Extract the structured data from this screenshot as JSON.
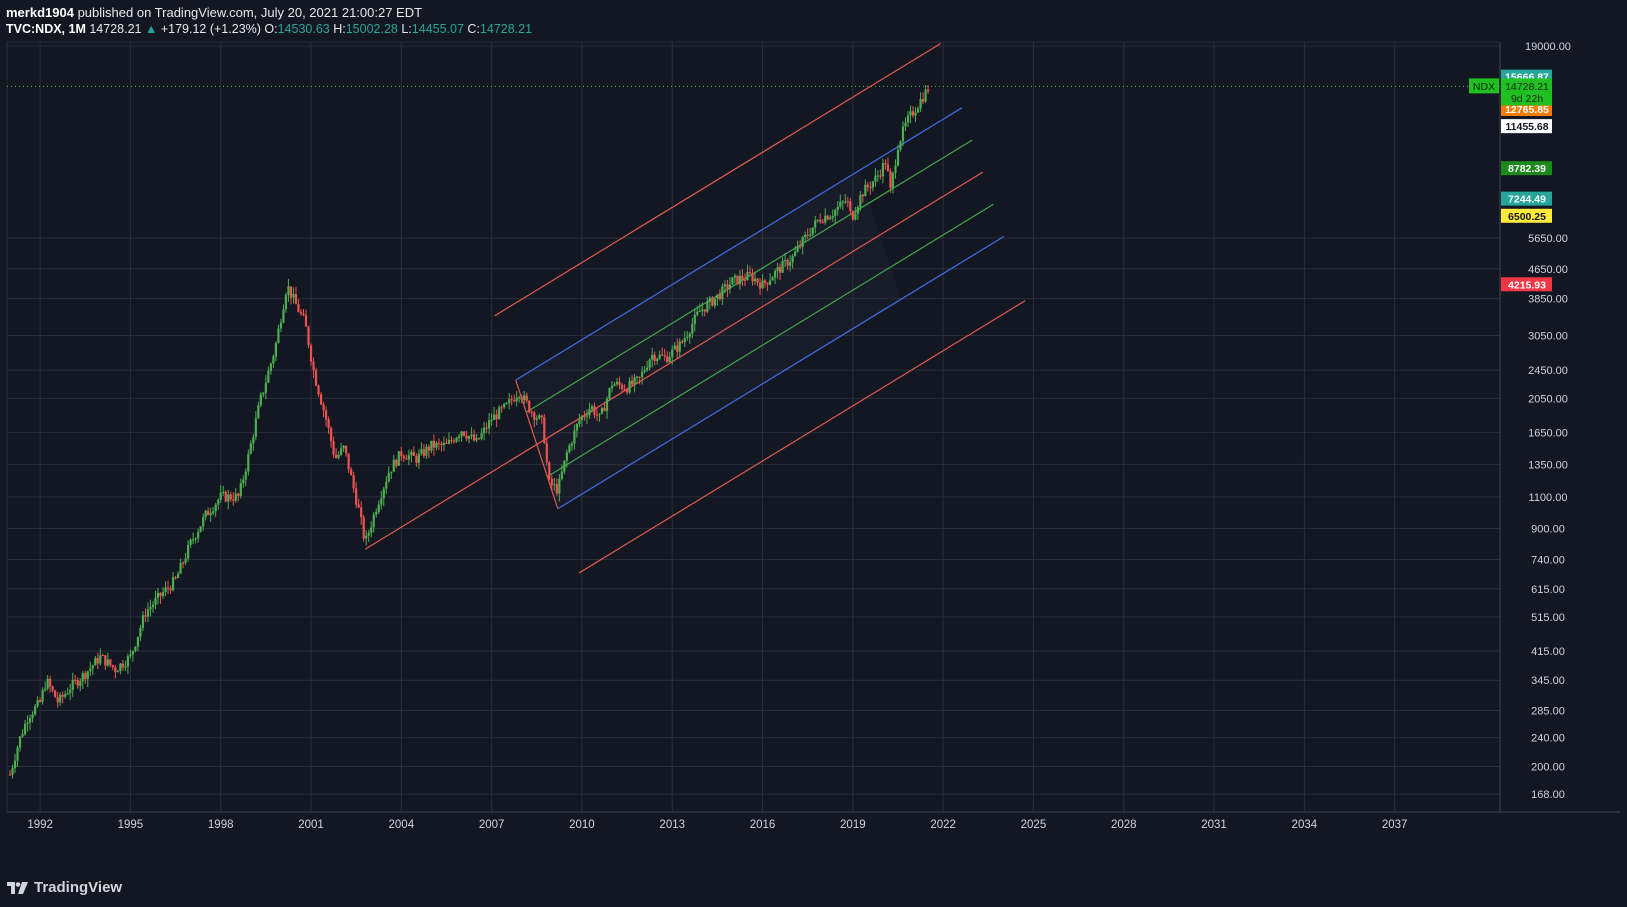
{
  "header": {
    "user": "merkd1904",
    "published_text": "published on TradingView.com, July 20, 2021 21:00:27 EDT"
  },
  "ohlc": {
    "symbol": "TVC:NDX, 1M",
    "last": "14728.21",
    "change": "+179.12 (+1.23%)",
    "o_label": "O:",
    "o": "14530.63",
    "h_label": "H:",
    "h": "15002.28",
    "l_label": "L:",
    "l": "14455.07",
    "c_label": "C:",
    "c": "14728.21"
  },
  "footer": {
    "brand": "TradingView"
  },
  "colors": {
    "background": "#131722",
    "grid": "#2a2e39",
    "up": "#4caf50",
    "down": "#ef5350",
    "pitchfork_red": "#e05a4e",
    "pitchfork_blue": "#3f6fe8",
    "pitchfork_green": "#3fa84a",
    "price_line": "#4caf50"
  },
  "chart_data": {
    "type": "candlestick",
    "title": "TVC:NDX, 1M",
    "scale": "log",
    "ylim": [
      150,
      19500
    ],
    "xlim": [
      1990.9,
      2040.5
    ],
    "grid": true,
    "x_ticks": [
      "1992",
      "1995",
      "1998",
      "2001",
      "2004",
      "2007",
      "2010",
      "2013",
      "2016",
      "2019",
      "2022",
      "2025",
      "2028",
      "2031",
      "2034",
      "2037"
    ],
    "y_ticks": [
      "19000.00",
      "5650.00",
      "4650.00",
      "3850.00",
      "3050.00",
      "2450.00",
      "2050.00",
      "1650.00",
      "1350.00",
      "1100.00",
      "900.00",
      "740.00",
      "615.00",
      "515.00",
      "415.00",
      "345.00",
      "285.00",
      "240.00",
      "200.00",
      "168.00"
    ],
    "price_tags": [
      {
        "value": 15666.87,
        "label": "15666.87",
        "bg": "#26a69a",
        "fg": "#ffffff"
      },
      {
        "value": 14042.57,
        "label": "14042.57",
        "bg": "#2962ff",
        "fg": "#ffffff"
      },
      {
        "value": 12765.85,
        "label": "12765.85",
        "bg": "#f57c00",
        "fg": "#ffffff"
      },
      {
        "value": 11455.68,
        "label": "11455.68",
        "bg": "#ffffff",
        "fg": "#131722"
      },
      {
        "value": 8782.39,
        "label": "8782.39",
        "bg": "#1b8a1b",
        "fg": "#ffffff"
      },
      {
        "value": 7244.49,
        "label": "7244.49",
        "bg": "#26a69a",
        "fg": "#ffffff"
      },
      {
        "value": 6500.25,
        "label": "6500.25",
        "bg": "#ffeb3b",
        "fg": "#131722"
      },
      {
        "value": 4215.93,
        "label": "4215.93",
        "bg": "#f23645",
        "fg": "#ffffff"
      }
    ],
    "last_price": {
      "value": 14728.21,
      "label": "14728.21",
      "countdown": "9d 22h",
      "symbol_tag": "NDX",
      "bg": "#1fc01f",
      "fg": "#0a2a0a"
    },
    "price_anchors": [
      [
        1991.0,
        190
      ],
      [
        1991.3,
        235
      ],
      [
        1991.6,
        275
      ],
      [
        1992.0,
        300
      ],
      [
        1992.2,
        345
      ],
      [
        1992.6,
        300
      ],
      [
        1993.0,
        330
      ],
      [
        1993.5,
        360
      ],
      [
        1994.0,
        400
      ],
      [
        1994.5,
        370
      ],
      [
        1995.0,
        400
      ],
      [
        1995.5,
        530
      ],
      [
        1996.0,
        590
      ],
      [
        1996.5,
        650
      ],
      [
        1997.0,
        820
      ],
      [
        1997.5,
        980
      ],
      [
        1998.0,
        1100
      ],
      [
        1998.6,
        1100
      ],
      [
        1998.9,
        1400
      ],
      [
        1999.3,
        2000
      ],
      [
        1999.8,
        2800
      ],
      [
        2000.2,
        4200
      ],
      [
        2000.5,
        3700
      ],
      [
        2000.8,
        3300
      ],
      [
        2001.1,
        2400
      ],
      [
        2001.5,
        1800
      ],
      [
        2001.8,
        1400
      ],
      [
        2002.1,
        1500
      ],
      [
        2002.6,
        1000
      ],
      [
        2002.8,
        820
      ],
      [
        2003.2,
        1050
      ],
      [
        2003.6,
        1300
      ],
      [
        2004.0,
        1450
      ],
      [
        2004.5,
        1400
      ],
      [
        2005.0,
        1520
      ],
      [
        2005.5,
        1520
      ],
      [
        2006.0,
        1680
      ],
      [
        2006.5,
        1550
      ],
      [
        2007.0,
        1800
      ],
      [
        2007.5,
        1950
      ],
      [
        2007.9,
        2150
      ],
      [
        2008.3,
        1900
      ],
      [
        2008.7,
        1750
      ],
      [
        2008.9,
        1200
      ],
      [
        2009.2,
        1150
      ],
      [
        2009.5,
        1450
      ],
      [
        2009.9,
        1780
      ],
      [
        2010.3,
        1950
      ],
      [
        2010.6,
        1800
      ],
      [
        2011.0,
        2250
      ],
      [
        2011.5,
        2200
      ],
      [
        2011.9,
        2300
      ],
      [
        2012.3,
        2700
      ],
      [
        2012.8,
        2650
      ],
      [
        2013.3,
        2900
      ],
      [
        2013.9,
        3550
      ],
      [
        2014.5,
        3900
      ],
      [
        2015.0,
        4300
      ],
      [
        2015.6,
        4450
      ],
      [
        2016.0,
        4200
      ],
      [
        2016.5,
        4600
      ],
      [
        2017.0,
        5000
      ],
      [
        2017.5,
        5800
      ],
      [
        2017.9,
        6400
      ],
      [
        2018.3,
        6600
      ],
      [
        2018.8,
        7200
      ],
      [
        2018.95,
        6400
      ],
      [
        2019.3,
        7500
      ],
      [
        2019.8,
        8300
      ],
      [
        2020.1,
        9200
      ],
      [
        2020.25,
        7600
      ],
      [
        2020.5,
        10200
      ],
      [
        2020.8,
        11800
      ],
      [
        2021.1,
        12900
      ],
      [
        2021.3,
        13700
      ],
      [
        2021.55,
        14728
      ]
    ],
    "annotations": {
      "pitchfork": {
        "p1": [
          2002.8,
          790
        ],
        "p2": [
          2007.8,
          2300
        ],
        "p3": [
          2009.2,
          1020
        ],
        "levels": [
          {
            "offset": -1.0,
            "color": "red"
          },
          {
            "offset": -0.5,
            "color": "blue"
          },
          {
            "offset": -0.25,
            "color": "green"
          },
          {
            "offset": 0.0,
            "color": "red"
          },
          {
            "offset": 0.25,
            "color": "green"
          },
          {
            "offset": 0.5,
            "color": "blue"
          },
          {
            "offset": 1.0,
            "color": "red"
          }
        ]
      }
    }
  }
}
